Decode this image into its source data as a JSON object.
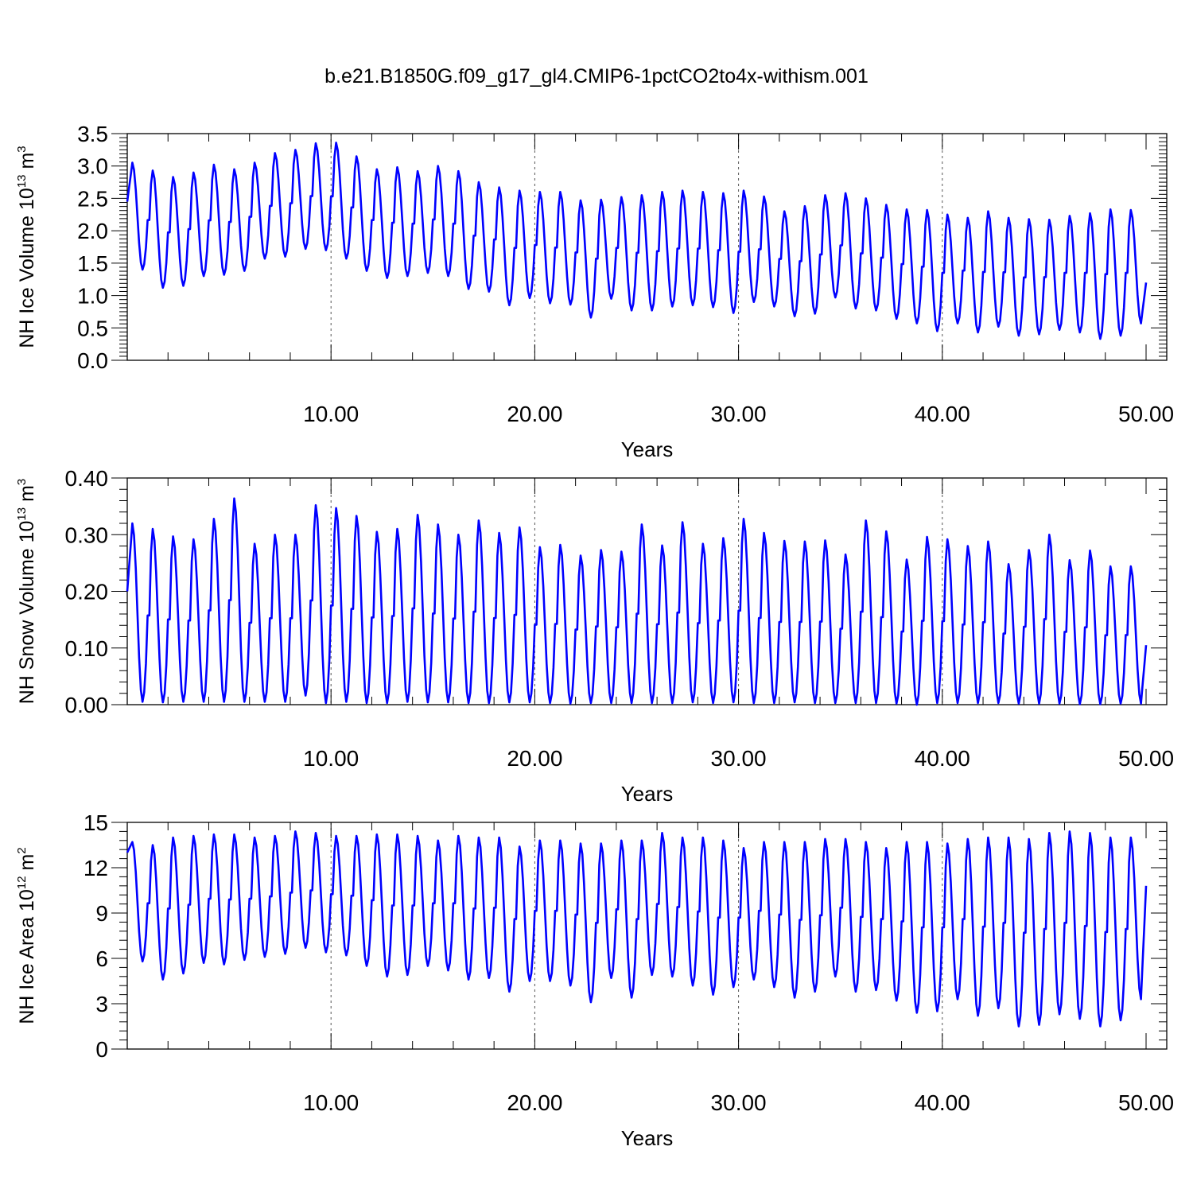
{
  "title": "b.e21.B1850G.f09_g17_gl4.CMIP6-1pctCO2to4x-withism.001",
  "colors": {
    "series": "#0000ff",
    "axes": "#000000",
    "grid": "#555555"
  },
  "chart_data": [
    {
      "type": "line",
      "ylabel": {
        "pre": "NH Ice Volume 10",
        "exp": "13",
        "mid": " m",
        "unit_exp": "3"
      },
      "xlabel": "Years",
      "xlim": [
        0,
        50
      ],
      "ylim": [
        0,
        3.5
      ],
      "xticks": [
        10,
        20,
        30,
        40,
        50
      ],
      "xtick_labels": [
        "10.00",
        "20.00",
        "30.00",
        "40.00",
        "50.00"
      ],
      "yticks": [
        0,
        0.5,
        1.0,
        1.5,
        2.0,
        2.5,
        3.0,
        3.5
      ],
      "ytick_labels": [
        "0.0",
        "0.5",
        "1.0",
        "1.5",
        "2.0",
        "2.5",
        "3.0",
        "3.5"
      ],
      "start_value": 2.45,
      "end_value": 1.2,
      "annual_max": [
        3.05,
        2.93,
        2.83,
        2.9,
        3.02,
        2.95,
        3.05,
        3.2,
        3.25,
        3.35,
        3.36,
        3.15,
        2.95,
        2.98,
        2.92,
        3.0,
        2.92,
        2.75,
        2.67,
        2.62,
        2.6,
        2.6,
        2.47,
        2.48,
        2.52,
        2.55,
        2.6,
        2.62,
        2.6,
        2.58,
        2.62,
        2.53,
        2.3,
        2.38,
        2.55,
        2.58,
        2.5,
        2.4,
        2.33,
        2.32,
        2.25,
        2.2,
        2.3,
        2.2,
        2.18,
        2.17,
        2.23,
        2.27,
        2.33,
        2.32
      ],
      "annual_min": [
        1.4,
        1.12,
        1.15,
        1.3,
        1.32,
        1.38,
        1.57,
        1.6,
        1.72,
        1.7,
        1.57,
        1.38,
        1.27,
        1.3,
        1.35,
        1.3,
        1.1,
        1.06,
        0.85,
        0.96,
        0.88,
        0.86,
        0.66,
        0.95,
        0.77,
        0.77,
        0.83,
        0.85,
        0.82,
        0.73,
        0.9,
        0.83,
        0.68,
        0.72,
        0.97,
        0.8,
        0.77,
        0.64,
        0.57,
        0.45,
        0.57,
        0.43,
        0.52,
        0.38,
        0.4,
        0.47,
        0.43,
        0.33,
        0.38,
        0.57
      ]
    },
    {
      "type": "line",
      "ylabel": {
        "pre": "NH Snow Volume 10",
        "exp": "13",
        "mid": " m",
        "unit_exp": "3"
      },
      "xlabel": "Years",
      "xlim": [
        0,
        50
      ],
      "ylim": [
        0,
        0.4
      ],
      "xticks": [
        10,
        20,
        30,
        40,
        50
      ],
      "xtick_labels": [
        "10.00",
        "20.00",
        "30.00",
        "40.00",
        "50.00"
      ],
      "yticks": [
        0,
        0.1,
        0.2,
        0.3,
        0.4
      ],
      "ytick_labels": [
        "0.00",
        "0.10",
        "0.20",
        "0.30",
        "0.40"
      ],
      "start_value": 0.2,
      "end_value": 0.105,
      "annual_max": [
        0.32,
        0.31,
        0.297,
        0.292,
        0.328,
        0.364,
        0.284,
        0.3,
        0.3,
        0.352,
        0.347,
        0.333,
        0.305,
        0.31,
        0.335,
        0.318,
        0.3,
        0.325,
        0.303,
        0.313,
        0.278,
        0.282,
        0.263,
        0.273,
        0.27,
        0.318,
        0.281,
        0.322,
        0.284,
        0.294,
        0.328,
        0.303,
        0.289,
        0.288,
        0.29,
        0.265,
        0.325,
        0.306,
        0.256,
        0.296,
        0.292,
        0.28,
        0.288,
        0.248,
        0.273,
        0.3,
        0.255,
        0.272,
        0.244,
        0.244
      ],
      "annual_min": [
        0.005,
        0.004,
        0.005,
        0.005,
        0.005,
        0.005,
        0.005,
        0.005,
        0.016,
        0.003,
        0.005,
        0.003,
        0.003,
        0.005,
        0.004,
        0.004,
        0.003,
        0.003,
        0.004,
        0.004,
        0.003,
        0.002,
        0.003,
        0.003,
        0.003,
        0.003,
        0.003,
        0.004,
        0.003,
        0.004,
        0.003,
        0.003,
        0.004,
        0.003,
        0.003,
        0.003,
        0.003,
        0.002,
        0.0,
        0.003,
        0.003,
        0.003,
        0.003,
        0.002,
        0.002,
        0.002,
        0.001,
        0.001,
        0.002,
        0.002
      ]
    },
    {
      "type": "line",
      "ylabel": {
        "pre": "NH Ice Area 10",
        "exp": "12",
        "mid": " m",
        "unit_exp": "2"
      },
      "xlabel": "Years",
      "xlim": [
        0,
        50
      ],
      "ylim": [
        0,
        15
      ],
      "xticks": [
        10,
        20,
        30,
        40,
        50
      ],
      "xtick_labels": [
        "10.00",
        "20.00",
        "30.00",
        "40.00",
        "50.00"
      ],
      "yticks": [
        0,
        3,
        6,
        9,
        12,
        15
      ],
      "ytick_labels": [
        "0",
        "3",
        "6",
        "9",
        "12",
        "15"
      ],
      "start_value": 13.0,
      "end_value": 10.8,
      "annual_max": [
        13.7,
        13.5,
        14.0,
        14.1,
        14.2,
        14.2,
        14.0,
        14.1,
        14.4,
        14.3,
        14.1,
        14.1,
        14.2,
        14.2,
        14.1,
        13.8,
        14.1,
        14.0,
        14.0,
        13.4,
        13.8,
        13.8,
        13.6,
        13.6,
        13.8,
        13.8,
        14.3,
        14.0,
        14.0,
        13.8,
        13.3,
        13.7,
        13.7,
        13.7,
        13.9,
        13.9,
        13.7,
        13.3,
        13.7,
        13.7,
        13.6,
        13.9,
        14.0,
        14.0,
        13.9,
        14.3,
        14.4,
        14.3,
        14.0,
        14.0
      ],
      "annual_min": [
        5.8,
        4.6,
        5.0,
        5.7,
        5.6,
        5.9,
        6.1,
        6.3,
        6.7,
        6.4,
        6.2,
        5.5,
        4.8,
        4.9,
        5.5,
        5.2,
        4.6,
        4.7,
        3.8,
        4.5,
        4.5,
        4.2,
        3.1,
        4.7,
        3.4,
        4.9,
        4.8,
        4.2,
        3.6,
        4.1,
        4.6,
        4.1,
        3.4,
        3.8,
        4.8,
        3.8,
        3.9,
        3.2,
        2.4,
        2.5,
        3.3,
        2.2,
        2.7,
        1.5,
        1.6,
        2.3,
        2.0,
        1.5,
        1.9,
        3.3
      ]
    }
  ]
}
